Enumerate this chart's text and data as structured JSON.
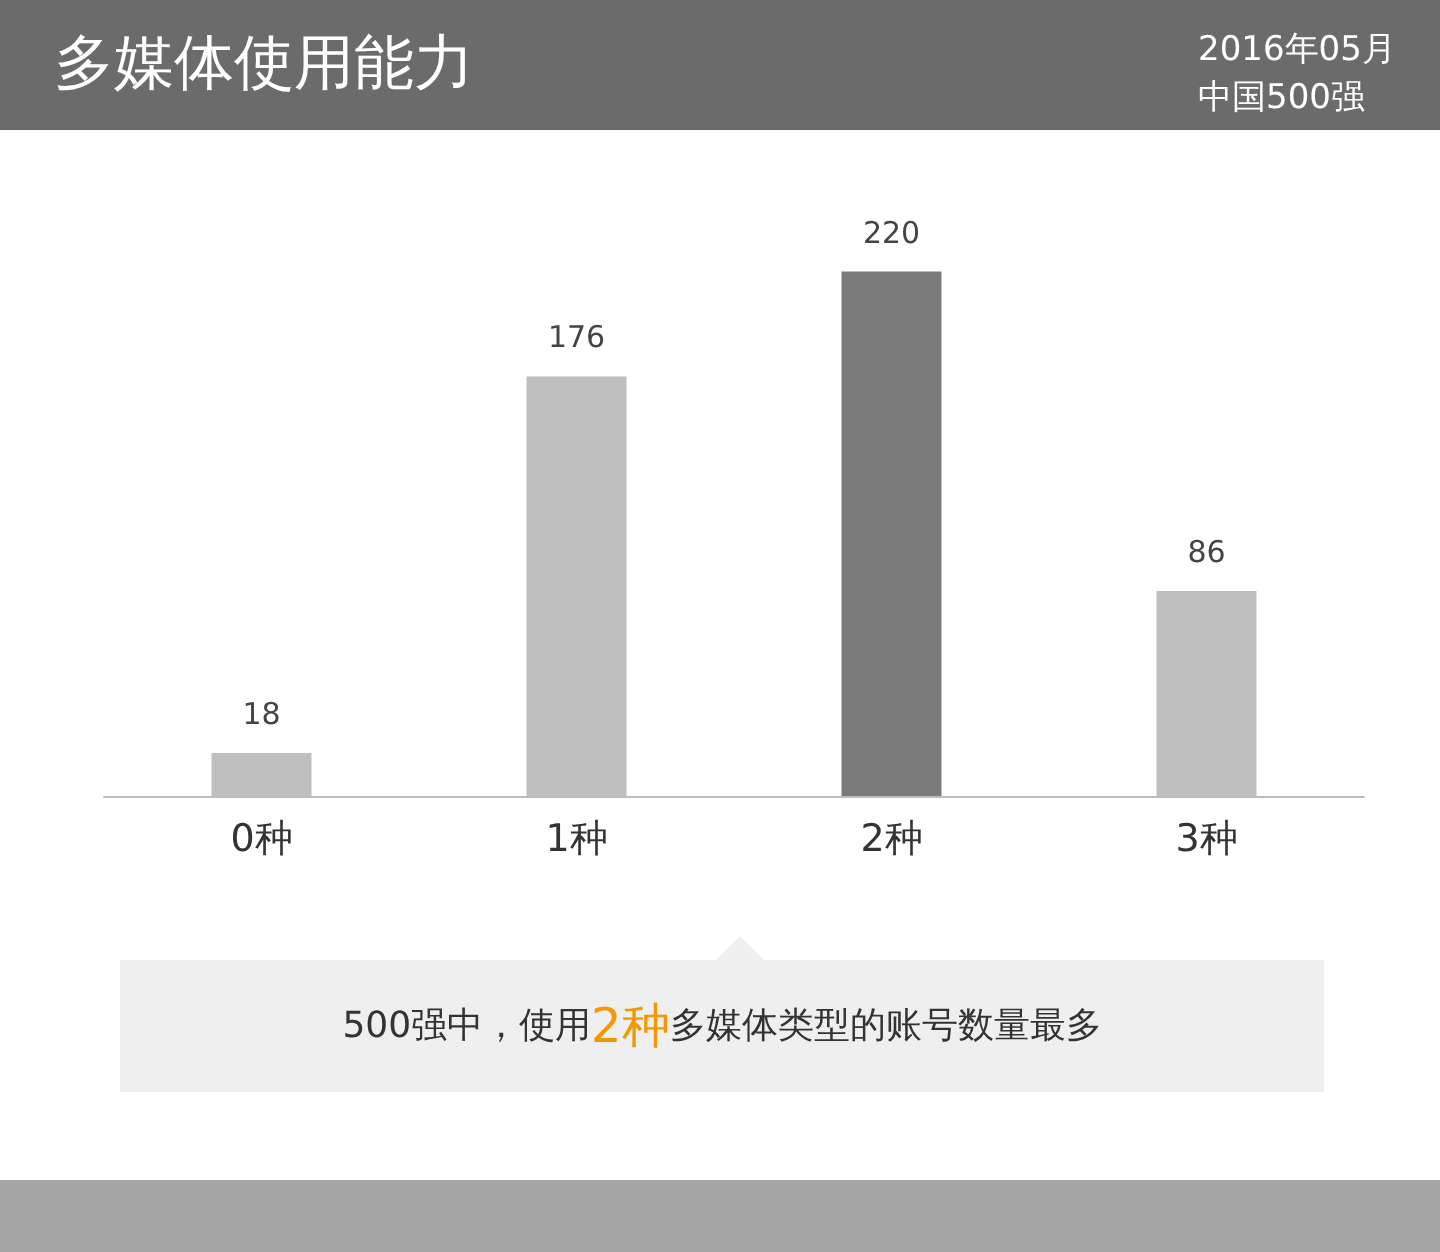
{
  "chart_data": {
    "type": "bar",
    "title": "多媒体使用能力",
    "subtitle": "2016年05月中国500强",
    "categories": [
      "0种",
      "1种",
      "2种",
      "3种"
    ],
    "values": [
      18,
      176,
      220,
      86
    ],
    "colors": [
      "#bfbfbf",
      "#bfbfbf",
      "#7a7a7a",
      "#bfbfbf"
    ],
    "data_labels": true,
    "grid": false,
    "annotations": [
      "500强中，使用2种多媒体类型的账号数量最多"
    ]
  }
}
